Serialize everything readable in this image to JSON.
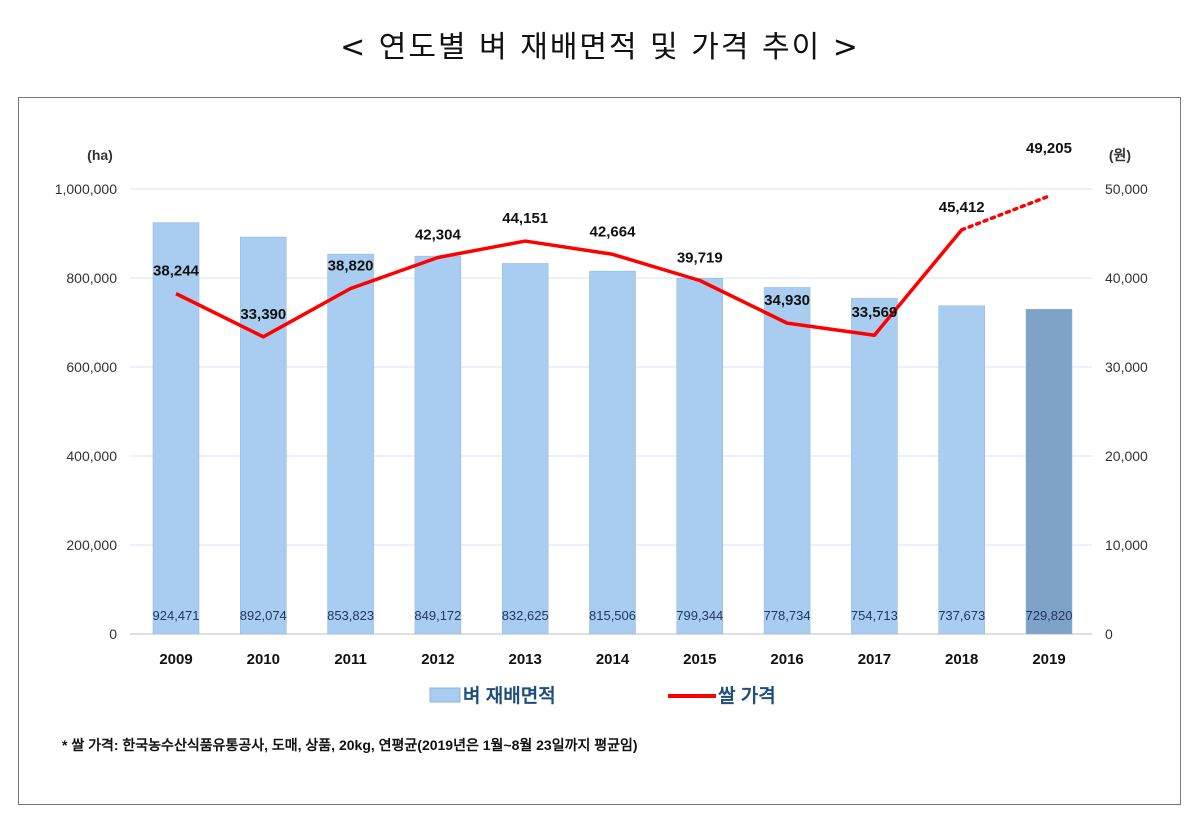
{
  "title": "< 연도별 벼 재배면적 및 가격 추이 >",
  "chart_data": {
    "type": "bar+line",
    "categories": [
      "2009",
      "2010",
      "2011",
      "2012",
      "2013",
      "2014",
      "2015",
      "2016",
      "2017",
      "2018",
      "2019"
    ],
    "series": [
      {
        "name": "벼 재배면적",
        "type": "bar",
        "axis": "left",
        "color": "#a9cdf0",
        "highlight_color": "#7fa3c6",
        "values": [
          924471,
          892074,
          853823,
          849172,
          832625,
          815506,
          799344,
          778734,
          754713,
          737673,
          729820
        ],
        "labels": [
          "924,471",
          "892,074",
          "853,823",
          "849,172",
          "832,625",
          "815,506",
          "799,344",
          "778,734",
          "754,713",
          "737,673",
          "729,820"
        ]
      },
      {
        "name": "쌀 가격",
        "type": "line",
        "axis": "right",
        "color": "#ff0000",
        "values": [
          38244,
          33390,
          38820,
          42304,
          44151,
          42664,
          39719,
          34930,
          33569,
          45412,
          49205
        ],
        "labels": [
          "38,244",
          "33,390",
          "38,820",
          "42,304",
          "44,151",
          "42,664",
          "39,719",
          "34,930",
          "33,569",
          "45,412",
          "49,205"
        ],
        "dotted_last_segment": true
      }
    ],
    "left_axis": {
      "unit": "(ha)",
      "range": [
        0,
        1000000
      ],
      "ticks": [
        "0",
        "200,000",
        "400,000",
        "600,000",
        "800,000",
        "1,000,000"
      ]
    },
    "right_axis": {
      "unit": "(원)",
      "range": [
        0,
        50000
      ],
      "ticks": [
        "0",
        "10,000",
        "20,000",
        "30,000",
        "40,000",
        "50,000"
      ]
    },
    "grid": true,
    "legend_position": "bottom",
    "footnote": "* 쌀 가격: 한국농수산식품유통공사, 도매, 상품, 20kg, 연평균(2019년은 1월~8월 23일까지 평균임)"
  }
}
